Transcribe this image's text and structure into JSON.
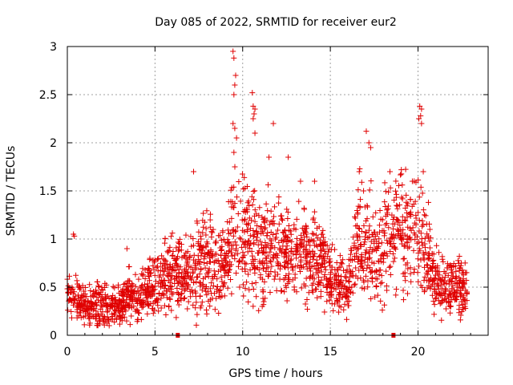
{
  "chart_data": {
    "type": "scatter",
    "title": "Day 085 of 2022, SRMTID for receiver eur2",
    "xlabel": "GPS time / hours",
    "ylabel": "SRMTID / TECUs",
    "xlim": [
      0,
      24
    ],
    "ylim": [
      0,
      3
    ],
    "xticks": [
      0,
      5,
      10,
      15,
      20
    ],
    "yticks": [
      0,
      0.5,
      1,
      1.5,
      2,
      2.5,
      3
    ],
    "ytick_labels": [
      "0",
      "0.5",
      "1",
      "1.5",
      "2",
      "2.5",
      "3"
    ],
    "grid": true,
    "marker": "plus",
    "color": "#e00000",
    "gap_markers_x": [
      6.3,
      18.6
    ],
    "profile": [
      [
        0.0,
        0.45,
        0.1
      ],
      [
        0.5,
        0.4,
        0.12
      ],
      [
        1.0,
        0.3,
        0.1
      ],
      [
        1.5,
        0.3,
        0.12
      ],
      [
        2.0,
        0.32,
        0.12
      ],
      [
        2.5,
        0.3,
        0.1
      ],
      [
        3.0,
        0.3,
        0.1
      ],
      [
        3.5,
        0.45,
        0.15
      ],
      [
        4.0,
        0.38,
        0.12
      ],
      [
        4.5,
        0.45,
        0.12
      ],
      [
        5.0,
        0.55,
        0.15
      ],
      [
        5.5,
        0.6,
        0.18
      ],
      [
        6.0,
        0.68,
        0.2
      ],
      [
        6.5,
        0.62,
        0.18
      ],
      [
        7.0,
        0.65,
        0.18
      ],
      [
        7.5,
        0.72,
        0.22
      ],
      [
        8.0,
        0.75,
        0.22
      ],
      [
        8.5,
        0.68,
        0.2
      ],
      [
        9.0,
        0.75,
        0.22
      ],
      [
        9.5,
        1.1,
        0.35
      ],
      [
        10.0,
        1.05,
        0.3
      ],
      [
        10.5,
        0.98,
        0.3
      ],
      [
        11.0,
        0.82,
        0.25
      ],
      [
        11.5,
        0.95,
        0.28
      ],
      [
        12.0,
        0.92,
        0.25
      ],
      [
        12.5,
        0.85,
        0.22
      ],
      [
        13.0,
        0.85,
        0.22
      ],
      [
        13.5,
        0.85,
        0.22
      ],
      [
        14.0,
        0.8,
        0.22
      ],
      [
        14.5,
        0.8,
        0.22
      ],
      [
        15.0,
        0.55,
        0.15
      ],
      [
        15.5,
        0.5,
        0.15
      ],
      [
        16.0,
        0.5,
        0.12
      ],
      [
        16.5,
        0.95,
        0.28
      ],
      [
        17.0,
        1.0,
        0.3
      ],
      [
        17.5,
        0.85,
        0.25
      ],
      [
        18.0,
        0.9,
        0.25
      ],
      [
        18.5,
        1.0,
        0.3
      ],
      [
        19.0,
        1.15,
        0.3
      ],
      [
        19.5,
        1.05,
        0.28
      ],
      [
        20.0,
        1.15,
        0.3
      ],
      [
        20.5,
        0.85,
        0.25
      ],
      [
        21.0,
        0.55,
        0.15
      ],
      [
        21.5,
        0.55,
        0.15
      ],
      [
        22.0,
        0.55,
        0.15
      ],
      [
        22.5,
        0.55,
        0.15
      ],
      [
        22.8,
        0.45,
        0.1
      ]
    ],
    "peaks": [
      [
        0.35,
        1.05
      ],
      [
        0.4,
        1.03
      ],
      [
        3.4,
        0.9
      ],
      [
        7.2,
        1.7
      ],
      [
        9.45,
        2.95
      ],
      [
        9.5,
        2.88
      ],
      [
        9.6,
        2.7
      ],
      [
        9.55,
        2.6
      ],
      [
        9.5,
        2.5
      ],
      [
        9.45,
        2.2
      ],
      [
        9.55,
        2.15
      ],
      [
        9.65,
        2.05
      ],
      [
        9.5,
        1.9
      ],
      [
        10.55,
        2.52
      ],
      [
        10.6,
        2.38
      ],
      [
        10.7,
        2.35
      ],
      [
        10.65,
        2.3
      ],
      [
        10.6,
        2.25
      ],
      [
        10.7,
        2.1
      ],
      [
        11.5,
        1.85
      ],
      [
        11.75,
        2.2
      ],
      [
        12.6,
        1.85
      ],
      [
        13.3,
        1.6
      ],
      [
        14.1,
        1.6
      ],
      [
        16.65,
        1.7
      ],
      [
        17.05,
        2.12
      ],
      [
        17.2,
        2.0
      ],
      [
        17.3,
        1.95
      ],
      [
        18.4,
        1.7
      ],
      [
        20.1,
        2.38
      ],
      [
        20.2,
        2.35
      ],
      [
        20.15,
        2.28
      ],
      [
        20.05,
        2.25
      ],
      [
        20.2,
        2.2
      ],
      [
        20.3,
        1.7
      ]
    ]
  }
}
